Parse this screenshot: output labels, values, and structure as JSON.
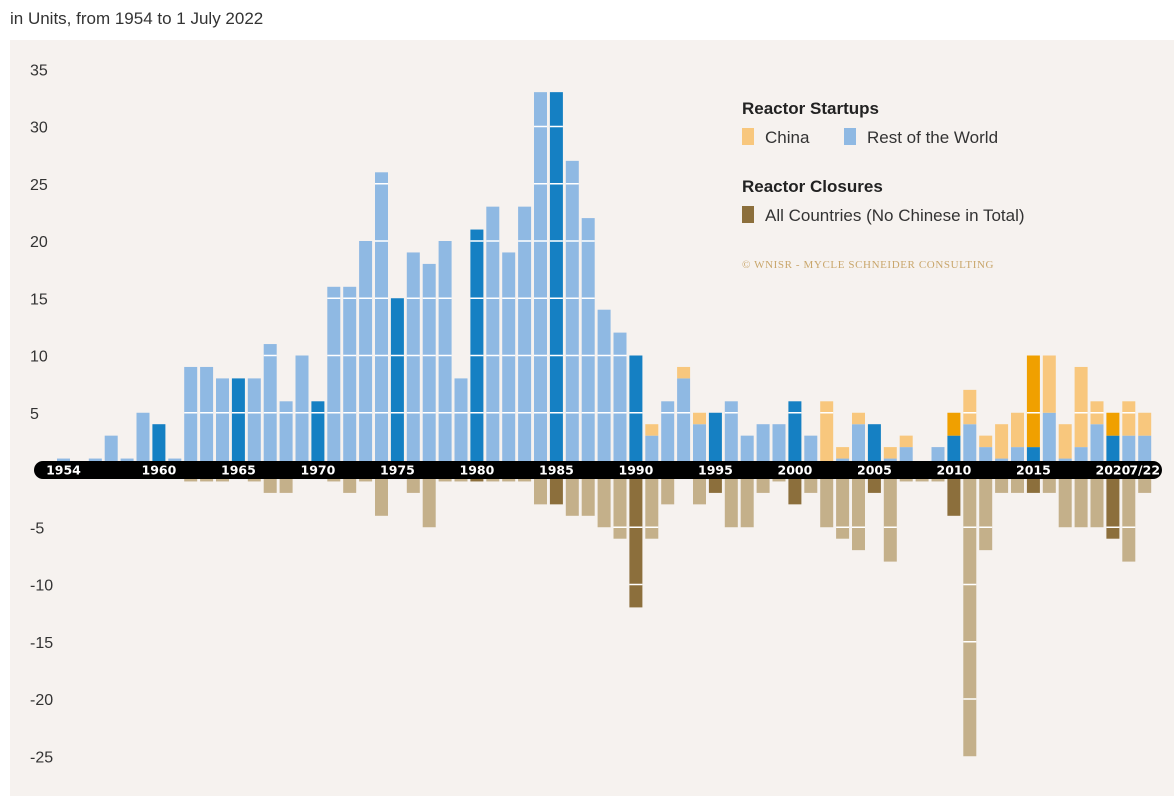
{
  "chart_data": {
    "type": "bar",
    "subtitle": "in Units, from 1954 to 1 July 2022",
    "ylim": [
      -27,
      37
    ],
    "yticks": [
      35,
      30,
      25,
      20,
      15,
      10,
      5,
      -5,
      -10,
      -15,
      -20,
      -25
    ],
    "years": [
      1954,
      1955,
      1956,
      1957,
      1958,
      1959,
      1960,
      1961,
      1962,
      1963,
      1964,
      1965,
      1966,
      1967,
      1968,
      1969,
      1970,
      1971,
      1972,
      1973,
      1974,
      1975,
      1976,
      1977,
      1978,
      1979,
      1980,
      1981,
      1982,
      1983,
      1984,
      1985,
      1986,
      1987,
      1988,
      1989,
      1990,
      1991,
      1992,
      1993,
      1994,
      1995,
      1996,
      1997,
      1998,
      1999,
      2000,
      2001,
      2002,
      2003,
      2004,
      2005,
      2006,
      2007,
      2008,
      2009,
      2010,
      2011,
      2012,
      2013,
      2014,
      2015,
      2016,
      2017,
      2018,
      2019,
      2020,
      2021,
      2022
    ],
    "x_tick_labels": [
      {
        "year": 1954,
        "label": "1954"
      },
      {
        "year": 1960,
        "label": "1960"
      },
      {
        "year": 1965,
        "label": "1965"
      },
      {
        "year": 1970,
        "label": "1970"
      },
      {
        "year": 1975,
        "label": "1975"
      },
      {
        "year": 1980,
        "label": "1980"
      },
      {
        "year": 1985,
        "label": "1985"
      },
      {
        "year": 1990,
        "label": "1990"
      },
      {
        "year": 1995,
        "label": "1995"
      },
      {
        "year": 2000,
        "label": "2000"
      },
      {
        "year": 2005,
        "label": "2005"
      },
      {
        "year": 2010,
        "label": "2010"
      },
      {
        "year": 2015,
        "label": "2015"
      },
      {
        "year": 2020,
        "label": "2020"
      },
      {
        "year": 2022,
        "label": "7/22"
      }
    ],
    "series": [
      {
        "name": "Rest of the World",
        "group": "Reactor Startups",
        "values": [
          1,
          0,
          1,
          3,
          1,
          5,
          4,
          1,
          9,
          9,
          8,
          8,
          8,
          11,
          6,
          10,
          6,
          16,
          16,
          20,
          26,
          15,
          19,
          18,
          20,
          8,
          21,
          23,
          19,
          23,
          33,
          33,
          27,
          22,
          14,
          12,
          10,
          3,
          6,
          8,
          4,
          5,
          6,
          3,
          4,
          4,
          6,
          3,
          0,
          1,
          4,
          4,
          1,
          2,
          0,
          2,
          3,
          4,
          2,
          1,
          2,
          2,
          5,
          1,
          2,
          4,
          3,
          3,
          3
        ]
      },
      {
        "name": "China",
        "group": "Reactor Startups",
        "values": [
          0,
          0,
          0,
          0,
          0,
          0,
          0,
          0,
          0,
          0,
          0,
          0,
          0,
          0,
          0,
          0,
          0,
          0,
          0,
          0,
          0,
          0,
          0,
          0,
          0,
          0,
          0,
          0,
          0,
          0,
          0,
          0,
          0,
          0,
          0,
          0,
          0,
          1,
          0,
          1,
          1,
          0,
          0,
          0,
          0,
          0,
          0,
          0,
          6,
          1,
          1,
          0,
          1,
          1,
          0,
          0,
          2,
          3,
          1,
          3,
          3,
          8,
          5,
          3,
          7,
          2,
          2,
          3,
          2
        ]
      },
      {
        "name": "All Countries (No Chinese in Total)",
        "group": "Reactor Closures",
        "values": [
          0,
          0,
          0,
          0,
          0,
          0,
          0,
          0,
          -1,
          -1,
          -1,
          0,
          -1,
          -2,
          -2,
          0,
          0,
          -1,
          -2,
          -1,
          -4,
          0,
          -2,
          -5,
          -1,
          -1,
          -1,
          -1,
          -1,
          -1,
          -3,
          -3,
          -4,
          -4,
          -5,
          -6,
          -12,
          -6,
          -3,
          0,
          -3,
          -2,
          -5,
          -5,
          -2,
          -1,
          -3,
          -2,
          -5,
          -6,
          -7,
          -2,
          -8,
          -1,
          -1,
          -1,
          -4,
          -25,
          -7,
          -2,
          -2,
          -2,
          -2,
          -5,
          -5,
          -5,
          -6,
          -8,
          -2
        ]
      }
    ],
    "highlight_years": [
      1960,
      1965,
      1970,
      1975,
      1980,
      1985,
      1990,
      1995,
      2000,
      2005,
      2010,
      2015,
      2020
    ],
    "colors": {
      "row_light": "#8fb9e3",
      "row_dark": "#1580c3",
      "china_light": "#f8c77d",
      "china_dark": "#f0a000",
      "closure_light": "#c4b08a",
      "closure_dark": "#8c6f3c",
      "axis_band": "#000000",
      "background": "#f6f2ef"
    },
    "legend": {
      "startups_title": "Reactor Startups",
      "china_label": "China",
      "rest_label": "Rest of the World",
      "closures_title": "Reactor Closures",
      "closures_label": "All Countries (No Chinese in Total)",
      "credit": "© WNISR - MYCLE SCHNEIDER CONSULTING"
    }
  }
}
